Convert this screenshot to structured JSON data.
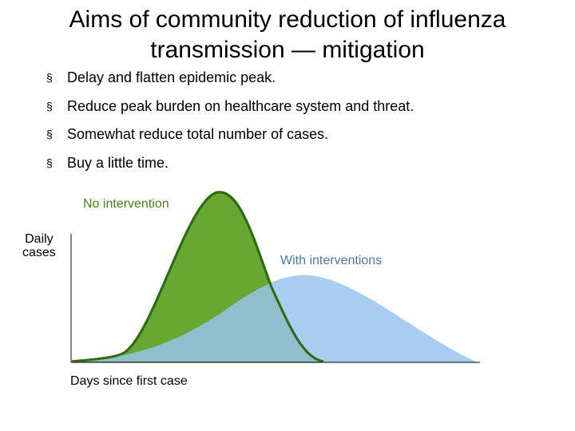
{
  "slide": {
    "title": "Aims of community reduction of influenza transmission — mitigation",
    "bullet_marker": "§",
    "bullets": [
      "Delay and flatten epidemic peak.",
      "Reduce peak burden on healthcare system and threat.",
      "Somewhat reduce total number of cases.",
      "Buy a little time."
    ]
  },
  "diagram": {
    "curve_no_intervention_label": "No intervention",
    "curve_with_interventions_label": "With interventions",
    "y_axis_label": "Daily\ncases",
    "x_axis_label": "Days since first case",
    "colors": {
      "no_intervention_fill": "#66a832",
      "no_intervention_stroke": "#2f6b12",
      "with_interventions_fill": "#a8cdf0",
      "overlap_fill": "#8fbecd",
      "axis": "#333333"
    }
  }
}
